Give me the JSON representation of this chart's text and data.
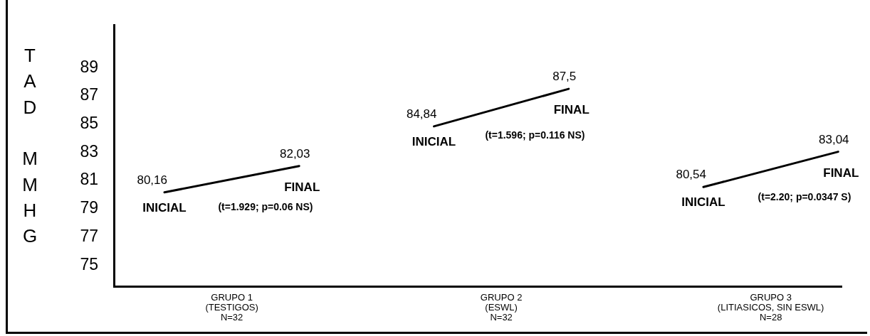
{
  "chart_data": {
    "type": "line",
    "ylabel": "TAD MMHG",
    "categories": [
      null,
      "GRUPO 1\n(TESTIGOS)\nN=32",
      null,
      null,
      null,
      "GRUPO 2\n(ESWL)\nN=32",
      null,
      null,
      null,
      "GRUPO 3\n(LITIASICOS, SIN ESWL)\nN=28",
      null
    ],
    "series": [
      {
        "color": "#000000",
        "values": [
          80.16,
          null,
          82.03,
          null,
          null,
          null,
          null,
          null,
          null,
          null,
          null
        ],
        "value_labels": [
          "80,16",
          null,
          "82,03",
          null,
          null,
          null,
          null,
          null,
          null,
          null,
          null
        ]
      },
      {
        "color": "#000000",
        "values": [
          null,
          null,
          null,
          null,
          84.84,
          null,
          87.5,
          null,
          null,
          null,
          null
        ],
        "value_labels": [
          null,
          null,
          null,
          null,
          "84,84",
          null,
          "87,5",
          null,
          null,
          null,
          null
        ]
      },
      {
        "color": "#000000",
        "values": [
          null,
          null,
          null,
          null,
          null,
          null,
          null,
          null,
          80.54,
          null,
          83.04
        ],
        "value_labels": [
          null,
          null,
          null,
          null,
          null,
          null,
          null,
          null,
          "80,54",
          null,
          "83,04"
        ]
      }
    ],
    "ylim": [
      73.5,
      92
    ],
    "yticks": [
      75,
      77,
      79,
      81,
      83,
      85,
      87,
      89
    ],
    "grid": false,
    "legend": false,
    "marker": "none",
    "line_style": "solid",
    "annotations": [
      {
        "text": "INICIAL",
        "y": 80.16
      },
      {
        "text": "FINAL",
        "y": 82.03
      },
      {
        "text": "INICIAL",
        "y": 84.84
      },
      {
        "text": "FINAL",
        "y": 87.5
      },
      {
        "text": "INICIAL",
        "y": 80.54
      },
      {
        "text": "FINAL",
        "y": 83.04
      },
      "(t=1.929; p=0.06 NS)",
      "(t=1.596; p=0.116 NS)",
      "(t=2.20; p=0.0347 S)"
    ]
  }
}
